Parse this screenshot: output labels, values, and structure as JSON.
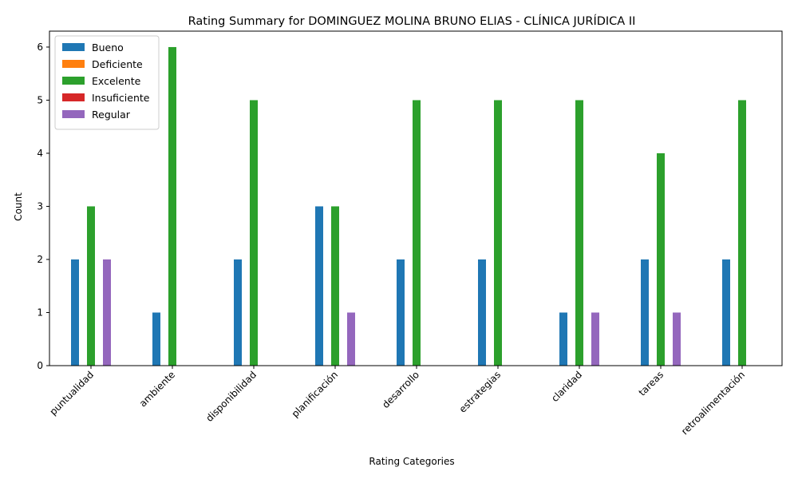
{
  "chart_data": {
    "type": "bar",
    "title": "Rating Summary for DOMINGUEZ MOLINA BRUNO ELIAS - CLÍNICA JURÍDICA II",
    "xlabel": "Rating Categories",
    "ylabel": "Count",
    "ylim": [
      0,
      6.3
    ],
    "yticks": [
      0,
      1,
      2,
      3,
      4,
      5,
      6
    ],
    "grid": false,
    "legend_position": "top-left",
    "categories": [
      "puntualidad",
      "ambiente",
      "disponibilidad",
      "planificación",
      "desarrollo",
      "estrategias",
      "claridad",
      "tareas",
      "retroalimentación"
    ],
    "series": [
      {
        "name": "Bueno",
        "color": "#1f77b4",
        "values": [
          2,
          1,
          2,
          3,
          2,
          2,
          1,
          2,
          2
        ]
      },
      {
        "name": "Deficiente",
        "color": "#ff7f0e",
        "values": [
          0,
          0,
          0,
          0,
          0,
          0,
          0,
          0,
          0
        ]
      },
      {
        "name": "Excelente",
        "color": "#2ca02c",
        "values": [
          3,
          6,
          5,
          3,
          5,
          5,
          5,
          4,
          5
        ]
      },
      {
        "name": "Insuficiente",
        "color": "#d62728",
        "values": [
          0,
          0,
          0,
          0,
          0,
          0,
          0,
          0,
          0
        ]
      },
      {
        "name": "Regular",
        "color": "#9467bd",
        "values": [
          2,
          0,
          0,
          1,
          0,
          0,
          1,
          1,
          0
        ]
      }
    ]
  }
}
